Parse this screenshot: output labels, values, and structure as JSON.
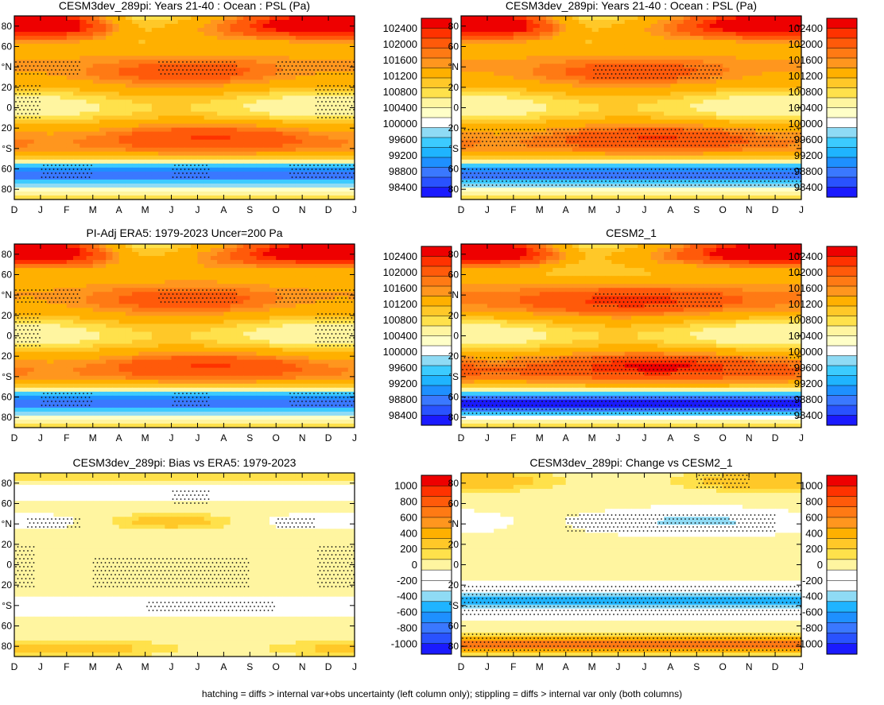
{
  "footnote": "hatching = diffs > internal var+obs uncertainty (left column only); stippling = diffs > internal var only (both columns)",
  "colors": {
    "abs_scale": [
      "#1a1aff",
      "#2952ff",
      "#3a78ff",
      "#1e90ff",
      "#1fb4ff",
      "#3ccbff",
      "#8fdbf5",
      "#ffffff",
      "#ffffc8",
      "#fff5a0",
      "#ffe14b",
      "#ffc828",
      "#ffb000",
      "#ff961e",
      "#ff7a14",
      "#ff5a0a",
      "#ff3200",
      "#ee0000"
    ],
    "diff_scale": [
      "#1a1aff",
      "#2952ff",
      "#3a78ff",
      "#1e90ff",
      "#1fb4ff",
      "#8fdbf5",
      "#ffffff",
      "#ffffff",
      "#fff5a0",
      "#ffe14b",
      "#ffc828",
      "#ffb000",
      "#ff961e",
      "#ff7a14",
      "#ff5a0a",
      "#ff3200",
      "#ee0000"
    ]
  },
  "chart_data": [
    {
      "type": "heatmap",
      "title": "CESM3dev_289pi: Years 21-40 : Ocean : PSL (Pa)",
      "x_ticks": [
        "D",
        "J",
        "F",
        "M",
        "A",
        "M",
        "J",
        "J",
        "A",
        "S",
        "O",
        "N",
        "D",
        "J"
      ],
      "y_ticks": [
        "80",
        "60",
        "°N",
        "20",
        "0",
        "20",
        "°S",
        "60",
        "80"
      ],
      "colorbar_labels": [
        "102400",
        "102000",
        "101600",
        "101200",
        "100800",
        "100400",
        "100000",
        "99600",
        "99200",
        "98800",
        "98400"
      ],
      "levels": [
        98200,
        98400,
        98600,
        98800,
        99000,
        99200,
        99400,
        99600,
        99800,
        100000,
        100200,
        100400,
        100600,
        100800,
        101000,
        101200,
        101400,
        101600,
        101800,
        102000,
        102200,
        102400
      ],
      "field": "psl_cesm3",
      "stipple": "s_top",
      "ylim": [
        -90,
        90
      ]
    },
    {
      "type": "heatmap",
      "title": "CESM3dev_289pi: Years 21-40 : Ocean : PSL (Pa)",
      "x_ticks": [
        "D",
        "J",
        "F",
        "M",
        "A",
        "M",
        "J",
        "J",
        "A",
        "S",
        "O",
        "N",
        "D",
        "J"
      ],
      "y_ticks": [
        "80",
        "60",
        "°N",
        "20",
        "0",
        "20",
        "°S",
        "60",
        "80"
      ],
      "colorbar_labels": [
        "102400",
        "102000",
        "101600",
        "101200",
        "100800",
        "100400",
        "100000",
        "99600",
        "99200",
        "98800",
        "98400"
      ],
      "levels": [
        98200,
        98400,
        98600,
        98800,
        99000,
        99200,
        99400,
        99600,
        99800,
        100000,
        100200,
        100400,
        100600,
        100800,
        101000,
        101200,
        101400,
        101600,
        101800,
        102000,
        102200,
        102400
      ],
      "field": "psl_cesm3",
      "stipple": "s_strong",
      "ylim": [
        -90,
        90
      ]
    },
    {
      "type": "heatmap",
      "title": "PI-Adj ERA5: 1979-2023 Uncer=200 Pa",
      "x_ticks": [
        "D",
        "J",
        "F",
        "M",
        "A",
        "M",
        "J",
        "J",
        "A",
        "S",
        "O",
        "N",
        "D",
        "J"
      ],
      "y_ticks": [
        "80",
        "60",
        "°N",
        "20",
        "0",
        "20",
        "°S",
        "60",
        "80"
      ],
      "colorbar_labels": [
        "102400",
        "102000",
        "101600",
        "101200",
        "100800",
        "100400",
        "100000",
        "99600",
        "99200",
        "98800",
        "98400"
      ],
      "levels": [
        98200,
        98400,
        98600,
        98800,
        99000,
        99200,
        99400,
        99600,
        99800,
        100000,
        100200,
        100400,
        100600,
        100800,
        101000,
        101200,
        101400,
        101600,
        101800,
        102000,
        102200,
        102400
      ],
      "field": "psl_era5",
      "stipple": "s_top",
      "ylim": [
        -90,
        90
      ]
    },
    {
      "type": "heatmap",
      "title": "CESM2_1",
      "x_ticks": [
        "D",
        "J",
        "F",
        "M",
        "A",
        "M",
        "J",
        "J",
        "A",
        "S",
        "O",
        "N",
        "D",
        "J"
      ],
      "y_ticks": [
        "80",
        "60",
        "°N",
        "20",
        "0",
        "20",
        "°S",
        "60",
        "80"
      ],
      "colorbar_labels": [
        "102400",
        "102000",
        "101600",
        "101200",
        "100800",
        "100400",
        "100000",
        "99600",
        "99200",
        "98800",
        "98400"
      ],
      "levels": [
        98200,
        98400,
        98600,
        98800,
        99000,
        99200,
        99400,
        99600,
        99800,
        100000,
        100200,
        100400,
        100600,
        100800,
        101000,
        101200,
        101400,
        101600,
        101800,
        102000,
        102200,
        102400
      ],
      "field": "psl_cesm2",
      "stipple": "s_strong",
      "ylim": [
        -90,
        90
      ]
    },
    {
      "type": "heatmap",
      "title": "CESM3dev_289pi: Bias vs ERA5: 1979-2023",
      "x_ticks": [
        "D",
        "J",
        "F",
        "M",
        "A",
        "M",
        "J",
        "J",
        "A",
        "S",
        "O",
        "N",
        "D",
        "J"
      ],
      "y_ticks": [
        "80",
        "60",
        "°N",
        "20",
        "0",
        "20",
        "°S",
        "60",
        "80"
      ],
      "colorbar_labels": [
        "1000",
        "800",
        "600",
        "400",
        "200",
        "0",
        "-200",
        "-400",
        "-600",
        "-800",
        "-1000"
      ],
      "levels": [
        -1100,
        -1000,
        -900,
        -800,
        -700,
        -600,
        -500,
        -400,
        -300,
        -200,
        -100,
        0,
        100,
        200,
        300,
        400,
        500,
        600,
        700,
        800,
        900,
        1000,
        1100
      ],
      "field": "bias",
      "stipple": "s_bias",
      "ylim": [
        -90,
        90
      ]
    },
    {
      "type": "heatmap",
      "title": "CESM3dev_289pi: Change vs CESM2_1",
      "x_ticks": [
        "D",
        "J",
        "F",
        "M",
        "A",
        "M",
        "J",
        "J",
        "A",
        "S",
        "O",
        "N",
        "D",
        "J"
      ],
      "y_ticks": [
        "80",
        "60",
        "°N",
        "20",
        "0",
        "20",
        "°S",
        "60",
        "80"
      ],
      "colorbar_labels": [
        "1000",
        "800",
        "600",
        "400",
        "200",
        "0",
        "-200",
        "-400",
        "-600",
        "-800",
        "-1000"
      ],
      "levels": [
        -1100,
        -1000,
        -900,
        -800,
        -700,
        -600,
        -500,
        -400,
        -300,
        -200,
        -100,
        0,
        100,
        200,
        300,
        400,
        500,
        600,
        700,
        800,
        900,
        1000,
        1100
      ],
      "field": "change",
      "stipple": "s_change",
      "ylim": [
        -90,
        90
      ]
    }
  ]
}
